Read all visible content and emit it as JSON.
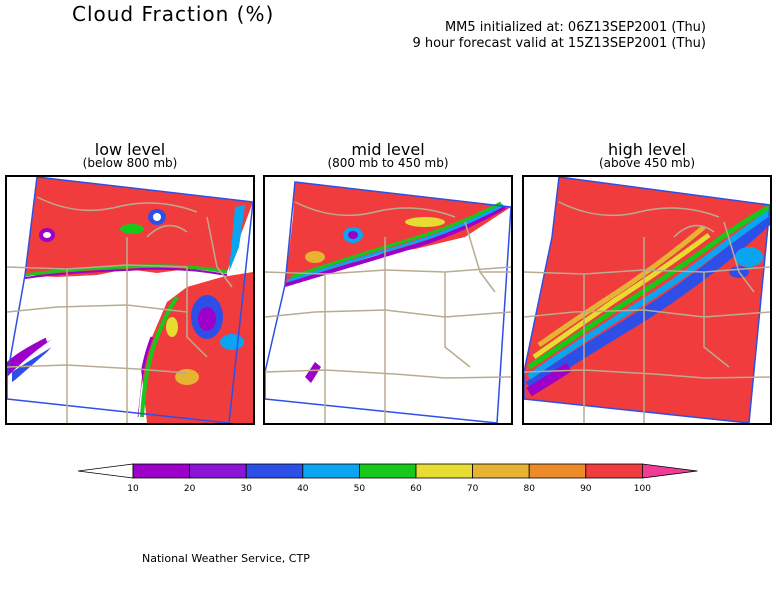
{
  "header": {
    "title": "Cloud Fraction (%)",
    "init_line": "MM5 initialized at: 06Z13SEP2001 (Thu)",
    "valid_line": "9 hour forecast valid at 15Z13SEP2001 (Thu)"
  },
  "panels": [
    {
      "title": "low level",
      "subtitle": "(below 800 mb)"
    },
    {
      "title": "mid level",
      "subtitle": "(800 mb to 450 mb)"
    },
    {
      "title": "high level",
      "subtitle": "(above 450 mb)"
    }
  ],
  "colorbar": {
    "ticks": [
      "10",
      "20",
      "30",
      "40",
      "50",
      "60",
      "70",
      "80",
      "90",
      "100"
    ],
    "colors": [
      "#ffffff",
      "#9d00c8",
      "#8a15d6",
      "#2d4fe8",
      "#0aa4f0",
      "#16c81a",
      "#e6dc32",
      "#e6b432",
      "#ec8c28",
      "#f03c3c",
      "#f03c96"
    ]
  },
  "footer": {
    "credit": "National Weather Service, CTP"
  }
}
